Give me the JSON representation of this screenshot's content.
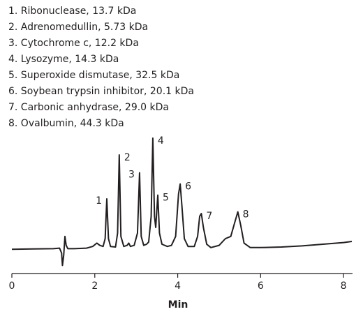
{
  "chart_data": {
    "type": "line",
    "legend_items": [
      "1. Ribonuclease, 13.7 kDa",
      "2. Adrenomedullin, 5.73 kDa",
      "3. Cytochrome c, 12.2 kDa",
      "4. Lysozyme, 14.3 kDa",
      "5. Superoxide dismutase, 32.5 kDa",
      "6. Soybean trypsin inhibitor, 20.1 kDa",
      "7. Carbonic anhydrase, 29.0 kDa",
      "8. Ovalbumin, 44.3 kDa"
    ],
    "xlabel": "Min",
    "x": [
      0,
      0.5,
      1.0,
      1.15,
      1.2,
      1.22,
      1.25,
      1.28,
      1.31,
      1.35,
      1.5,
      1.8,
      1.95,
      2.05,
      2.12,
      2.2,
      2.25,
      2.29,
      2.33,
      2.38,
      2.5,
      2.55,
      2.59,
      2.63,
      2.7,
      2.78,
      2.82,
      2.86,
      2.95,
      3.03,
      3.08,
      3.12,
      3.18,
      3.25,
      3.3,
      3.36,
      3.4,
      3.44,
      3.47,
      3.52,
      3.56,
      3.62,
      3.75,
      3.85,
      3.95,
      4.02,
      4.06,
      4.1,
      4.16,
      4.25,
      4.4,
      4.48,
      4.53,
      4.57,
      4.62,
      4.7,
      4.8,
      5.0,
      5.15,
      5.28,
      5.38,
      5.45,
      5.52,
      5.6,
      5.75,
      6.0,
      6.5,
      7.0,
      7.5,
      8.0,
      8.2
    ],
    "series": [
      {
        "color": "#231f20",
        "values": [
          0.5,
          0.8,
          1,
          1.5,
          -3,
          -14,
          -5,
          12,
          4,
          1,
          1,
          1.5,
          3,
          6,
          4,
          3,
          10,
          45.6,
          10,
          3,
          2.5,
          15,
          85,
          12,
          3,
          4,
          6,
          3,
          4,
          15,
          69,
          12,
          4,
          5,
          7,
          30,
          100,
          30,
          20,
          49,
          15,
          5,
          3,
          4,
          12,
          50,
          59,
          40,
          10,
          3,
          3,
          12,
          30,
          32.5,
          20,
          5,
          2,
          4,
          10,
          12,
          25,
          34,
          22,
          6,
          2,
          2,
          2.5,
          3.5,
          5,
          6.5,
          7.5
        ]
      }
    ],
    "peaks": [
      {
        "label": "1",
        "time": 2.29
      },
      {
        "label": "2",
        "time": 2.59
      },
      {
        "label": "3",
        "time": 3.08
      },
      {
        "label": "4",
        "time": 3.4
      },
      {
        "label": "5",
        "time": 3.52
      },
      {
        "label": "6",
        "time": 4.06
      },
      {
        "label": "7",
        "time": 4.57
      },
      {
        "label": "8",
        "time": 5.45
      }
    ],
    "xlim": [
      0,
      8.2
    ],
    "ylim": [
      -20,
      100
    ],
    "xticks": [
      0,
      2,
      4,
      6,
      8
    ],
    "grid": false
  }
}
